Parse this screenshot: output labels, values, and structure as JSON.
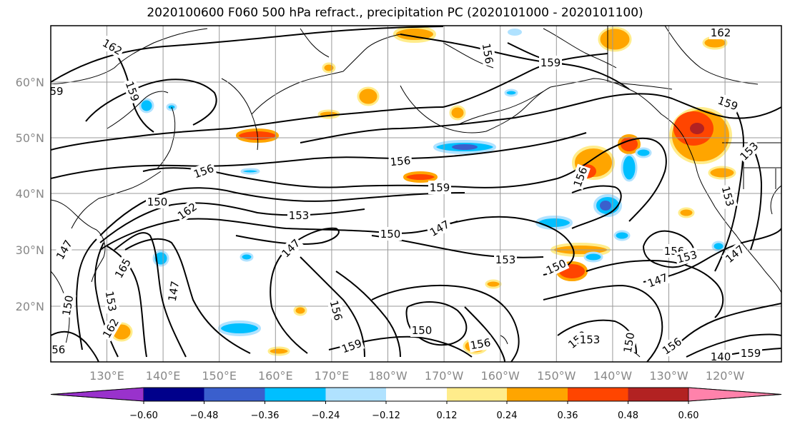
{
  "title": "2020100600 F060 500 hPa refract., precipitation PC (2020101000 - 2020101100)",
  "map": {
    "lat_labels": [
      "60°N",
      "50°N",
      "40°N",
      "30°N",
      "20°N"
    ],
    "lon_labels": [
      "130°E",
      "140°E",
      "150°E",
      "160°E",
      "170°E",
      "180°W",
      "170°W",
      "160°W",
      "150°W",
      "140°W",
      "130°W",
      "120°W"
    ],
    "gridlines": true,
    "contour_labels": [
      {
        "text": "162",
        "rot": 30
      },
      {
        "text": "159",
        "rot": 70
      },
      {
        "text": "59",
        "rot": 0
      },
      {
        "text": "156",
        "rot": -20
      },
      {
        "text": "156",
        "rot": -5
      },
      {
        "text": "159",
        "rot": 0
      },
      {
        "text": "150",
        "rot": 0
      },
      {
        "text": "162",
        "rot": -35
      },
      {
        "text": "153",
        "rot": 0
      },
      {
        "text": "150",
        "rot": 0
      },
      {
        "text": "147",
        "rot": -30
      },
      {
        "text": "147",
        "rot": -45
      },
      {
        "text": "147",
        "rot": -80
      },
      {
        "text": "147",
        "rot": -60
      },
      {
        "text": "165",
        "rot": -60
      },
      {
        "text": "153",
        "rot": 80
      },
      {
        "text": "150",
        "rot": -80
      },
      {
        "text": "162",
        "rot": -60
      },
      {
        "text": "153",
        "rot": 0
      },
      {
        "text": "150",
        "rot": -25
      },
      {
        "text": "156",
        "rot": 75
      },
      {
        "text": "159",
        "rot": -20
      },
      {
        "text": "150",
        "rot": 0
      },
      {
        "text": "156",
        "rot": -10
      },
      {
        "text": "150",
        "rot": -40
      },
      {
        "text": "153",
        "rot": 0
      },
      {
        "text": "147",
        "rot": -20
      },
      {
        "text": "156",
        "rot": 0
      },
      {
        "text": "153",
        "rot": -15
      },
      {
        "text": "147",
        "rot": -40
      },
      {
        "text": "156",
        "rot": -70
      },
      {
        "text": "159",
        "rot": 0
      },
      {
        "text": "162",
        "rot": 0
      },
      {
        "text": "159",
        "rot": 20
      },
      {
        "text": "153",
        "rot": -45
      },
      {
        "text": "156",
        "rot": 80
      },
      {
        "text": "153",
        "rot": 75
      },
      {
        "text": "150",
        "rot": -80
      },
      {
        "text": "156",
        "rot": -35
      },
      {
        "text": "140",
        "rot": 0
      },
      {
        "text": "159",
        "rot": 0
      },
      {
        "text": "156",
        "rot": 0
      }
    ],
    "land_color": "#ffffff",
    "coast_color": "#000000",
    "contour_color": "#000000"
  },
  "colorbar": {
    "ticks": [
      "−0.60",
      "−0.48",
      "−0.36",
      "−0.24",
      "−0.12",
      "0.12",
      "0.24",
      "0.36",
      "0.48",
      "0.60"
    ],
    "colors": [
      "#9932CC",
      "#00008B",
      "#3A5FCD",
      "#00BFFF",
      "#B0E2FF",
      "#FFFFFF",
      "#FFEC8B",
      "#FFA500",
      "#FF4500",
      "#B22222",
      "#FF82AB"
    ]
  }
}
